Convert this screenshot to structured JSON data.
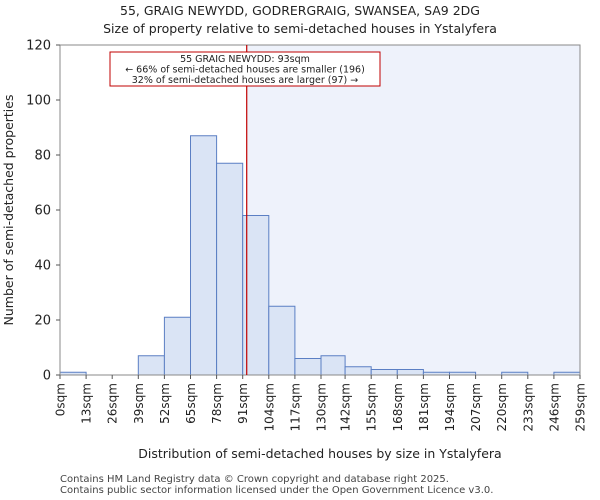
{
  "header": {
    "title": "55, GRAIG NEWYDD, GODRERGRAIG, SWANSEA, SA9 2DG",
    "subtitle": "Size of property relative to semi-detached houses in Ystalyfera"
  },
  "footer": {
    "line1": "Contains HM Land Registry data © Crown copyright and database right 2025.",
    "line2": "Contains public sector information licensed under the Open Government Licence v3.0."
  },
  "colors": {
    "bar_fill": "#dae4f5",
    "bar_stroke": "#5b7fc4",
    "marker": "#c00000",
    "highlight_region": "#eef2fb"
  },
  "chart_data": {
    "type": "bar",
    "title": "Size of property relative to semi-detached houses in Ystalyfera",
    "xlabel": "Distribution of semi-detached houses by size in Ystalyfera",
    "ylabel": "Number of semi-detached properties",
    "ylim": [
      0,
      120
    ],
    "yticks": [
      0,
      20,
      40,
      60,
      80,
      100,
      120
    ],
    "bin_edges": [
      0,
      13,
      26,
      39,
      52,
      65,
      78,
      91,
      104,
      117,
      130,
      142,
      155,
      168,
      181,
      194,
      207,
      220,
      233,
      246,
      259
    ],
    "tick_labels": [
      "0sqm",
      "13sqm",
      "26sqm",
      "39sqm",
      "52sqm",
      "65sqm",
      "78sqm",
      "91sqm",
      "104sqm",
      "117sqm",
      "130sqm",
      "142sqm",
      "155sqm",
      "168sqm",
      "181sqm",
      "194sqm",
      "207sqm",
      "220sqm",
      "233sqm",
      "246sqm",
      "259sqm"
    ],
    "values": [
      1,
      0,
      0,
      7,
      21,
      87,
      77,
      58,
      25,
      6,
      7,
      3,
      2,
      2,
      1,
      1,
      0,
      1,
      0,
      1
    ],
    "marker_value": 93,
    "annotation": {
      "line1": "55 GRAIG NEWYDD: 93sqm",
      "line2": "← 66% of semi-detached houses are smaller (196)",
      "line3": "32% of semi-detached houses are larger (97) →"
    }
  }
}
